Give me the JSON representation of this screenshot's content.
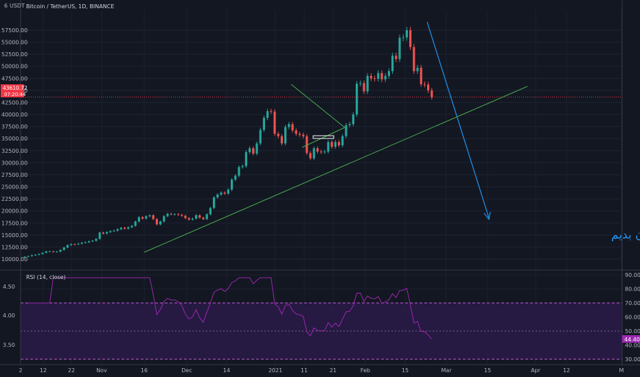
{
  "header": {
    "currency_label": "USDT",
    "symbol_title": "Bitcoin / TetherUS, 1D, BINANCE"
  },
  "left_axis": {
    "top_label": "6",
    "labels": [
      "4.50",
      "4.00",
      "3.50"
    ]
  },
  "price_axis": {
    "labels": [
      "57500.00",
      "55000.00",
      "52500.00",
      "50000.00",
      "47500.00",
      "45000.00",
      "42500.00",
      "40000.00",
      "37500.00",
      "35000.00",
      "32500.00",
      "30000.00",
      "27500.00",
      "25000.00",
      "22500.00",
      "20000.00",
      "17500.00",
      "15000.00",
      "12500.00",
      "10000.00"
    ],
    "current_price": "43610.72",
    "countdown": "07:20:44",
    "current_price_color": "#f23645"
  },
  "rsi_axis": {
    "labels": [
      "90.00",
      "80.00",
      "70.00",
      "60.00",
      "50.00",
      "40.00",
      "30.00"
    ],
    "current_value": "44.40",
    "current_value_color": "#9c27b0"
  },
  "time_axis": {
    "labels": [
      "2",
      "12",
      "22",
      "Nov",
      "16",
      "Dec",
      "14",
      "2021",
      "11",
      "21",
      "Feb",
      "15",
      "Mar",
      "15",
      "Apr",
      "12",
      "M"
    ]
  },
  "rsi_panel": {
    "title": "RSI (14, close)",
    "line_color": "#9c27b0"
  },
  "annotation": {
    "text": "وحید تا اینجا میاد به گای سگ میریم باید بریم ..ون بدیم",
    "color": "#2196f3"
  },
  "colors": {
    "bull": "#26a69a",
    "bear": "#ef5350",
    "trendline": "#4caf50",
    "arrow": "#2196f3"
  },
  "chart_data": {
    "type": "candlestick",
    "symbol": "Bitcoin / TetherUS, 1D, BINANCE",
    "y_range": [
      9000,
      58500
    ],
    "close_series": [
      10500,
      10620,
      10800,
      10900,
      11050,
      11300,
      11600,
      11600,
      11500,
      11550,
      11900,
      12400,
      12900,
      13100,
      13050,
      13200,
      13400,
      13500,
      13700,
      13800,
      14200,
      15500,
      15300,
      15600,
      15800,
      15900,
      16200,
      16500,
      16300,
      16600,
      16900,
      17800,
      18700,
      18400,
      18900,
      19100,
      18300,
      17200,
      17800,
      18900,
      19400,
      19300,
      19300,
      19200,
      19000,
      18500,
      18200,
      18400,
      19100,
      18600,
      18300,
      19300,
      20600,
      22800,
      23400,
      23800,
      23600,
      24400,
      26500,
      27300,
      29100,
      29300,
      32200,
      33000,
      31900,
      34000,
      36800,
      39300,
      40700,
      40600,
      36000,
      35500,
      34000,
      37400,
      38000,
      36700,
      36000,
      35800,
      35500,
      32000,
      30900,
      33000,
      32300,
      32200,
      32300,
      34300,
      33300,
      34300,
      33600,
      35500,
      37800,
      38000,
      40000,
      46400,
      46500,
      44800,
      48000,
      47500,
      47400,
      48600,
      47300,
      48000,
      49000,
      52200,
      51500,
      55900,
      56000,
      57500,
      54000,
      49000,
      49700,
      46300,
      46200,
      45000,
      43610
    ]
  }
}
